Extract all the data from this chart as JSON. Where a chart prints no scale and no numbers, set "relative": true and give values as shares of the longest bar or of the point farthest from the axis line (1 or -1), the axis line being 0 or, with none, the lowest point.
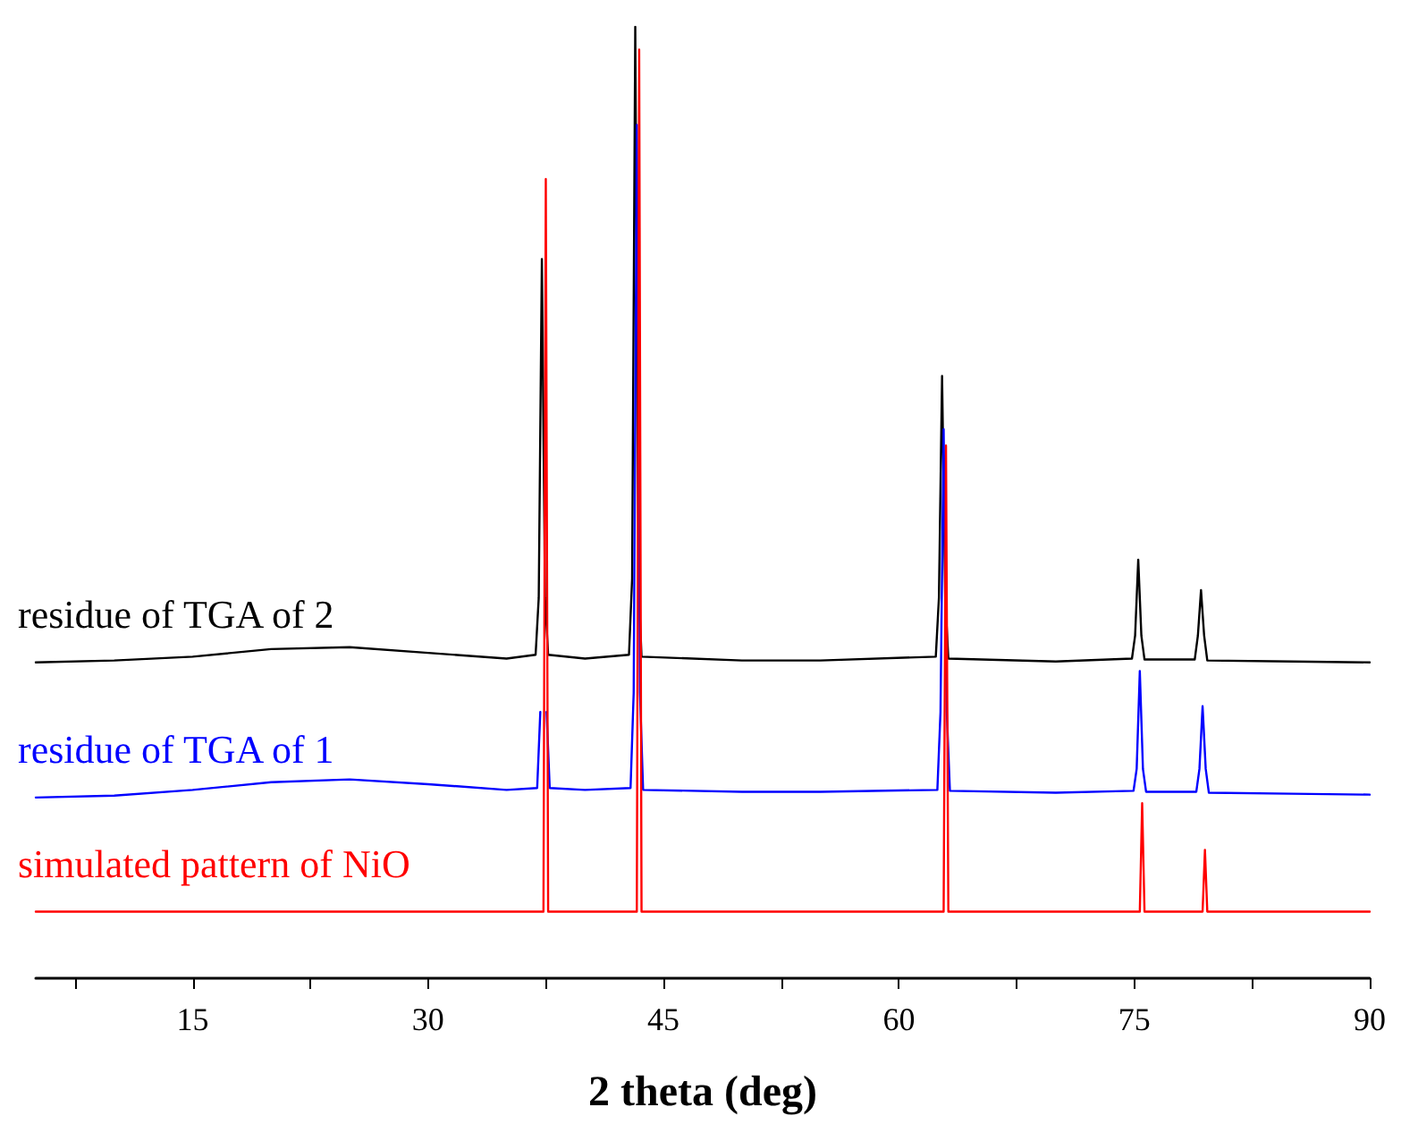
{
  "chart_data": {
    "type": "line",
    "xlabel": "2 theta (deg)",
    "relative": true,
    "xlim": [
      5,
      90
    ],
    "xticks": [
      {
        "value": 7.5,
        "label": null
      },
      15,
      {
        "value": 22.5,
        "label": null
      },
      30,
      {
        "value": 37.5,
        "label": null
      },
      45,
      {
        "value": 52.5,
        "label": null
      },
      60,
      {
        "value": 67.5,
        "label": null
      },
      75,
      {
        "value": 82.5,
        "label": null
      },
      90
    ],
    "series": [
      {
        "name": "residue of TGA of 2",
        "color": "#000000",
        "x": [
          5,
          10,
          15,
          20,
          25,
          30,
          35,
          36.85,
          37.05,
          37.25,
          37.45,
          37.65,
          40,
          42.8,
          43.0,
          43.2,
          43.4,
          43.6,
          50,
          55,
          62.35,
          62.55,
          62.75,
          62.95,
          63.15,
          70,
          74.85,
          75.05,
          75.25,
          75.45,
          75.65,
          78.85,
          79.05,
          79.25,
          79.45,
          79.65,
          85,
          90
        ],
        "values": [
          0.332,
          0.334,
          0.338,
          0.346,
          0.348,
          0.342,
          0.336,
          0.34,
          0.4,
          0.756,
          0.4,
          0.34,
          0.336,
          0.34,
          0.42,
          1.0,
          0.42,
          0.338,
          0.334,
          0.334,
          0.338,
          0.4,
          0.633,
          0.4,
          0.336,
          0.333,
          0.336,
          0.36,
          0.44,
          0.36,
          0.335,
          0.335,
          0.36,
          0.408,
          0.36,
          0.334,
          0.333,
          0.332
        ]
      },
      {
        "name": "residue of TGA of 1",
        "color": "#0000ff",
        "x": [
          5,
          10,
          15,
          20,
          25,
          30,
          35,
          36.95,
          37.15,
          37.35,
          37.55,
          37.75,
          40,
          42.9,
          43.1,
          43.3,
          43.5,
          43.7,
          50,
          55,
          62.45,
          62.65,
          62.85,
          63.05,
          63.25,
          70,
          74.95,
          75.15,
          75.35,
          75.55,
          75.75,
          78.95,
          79.15,
          79.35,
          79.55,
          79.75,
          85,
          90
        ],
        "values": [
          0.19,
          0.192,
          0.198,
          0.206,
          0.209,
          0.204,
          0.198,
          0.2,
          0.28,
          null,
          0.28,
          0.2,
          0.198,
          0.2,
          0.3,
          0.897,
          0.3,
          0.198,
          0.196,
          0.196,
          0.198,
          0.28,
          0.577,
          0.28,
          0.197,
          0.195,
          0.197,
          0.22,
          0.323,
          0.22,
          0.196,
          0.196,
          0.22,
          0.286,
          0.22,
          0.195,
          0.194,
          0.193
        ]
      },
      {
        "name": "simulated pattern of NiO",
        "color": "#ff0000",
        "x": [
          5,
          37.35,
          37.5,
          37.65,
          43.3,
          43.45,
          43.6,
          62.85,
          63.0,
          63.15,
          75.35,
          75.5,
          75.65,
          79.35,
          79.5,
          79.65,
          90
        ],
        "values": [
          0.07,
          0.07,
          0.84,
          0.07,
          0.07,
          0.976,
          0.07,
          0.07,
          0.56,
          0.07,
          0.07,
          0.184,
          0.07,
          0.07,
          0.135,
          0.07,
          0.07
        ]
      }
    ]
  }
}
